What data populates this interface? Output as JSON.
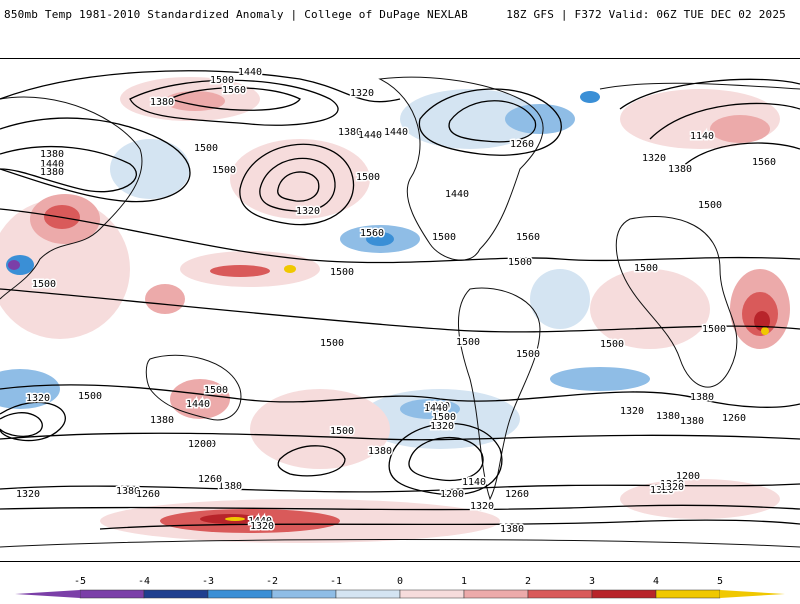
{
  "header": {
    "title_left": "850mb Temp 1981-2010 Standardized Anomaly | College of DuPage NEXLAB",
    "title_right": "18Z GFS | F372 Valid: 06Z TUE DEC 02 2025"
  },
  "colors": {
    "contour": "#000000",
    "coastline": "#111111",
    "anom_neg_5": "#7b3fa8",
    "anom_neg_4": "#1f3f8f",
    "anom_neg_3": "#3a8fd6",
    "anom_neg_2": "#8fbde6",
    "anom_neg_1": "#d4e4f2",
    "anom_pos_1": "#f6dcdc",
    "anom_pos_2": "#ecaaaa",
    "anom_pos_3": "#d95a5a",
    "anom_pos_4": "#b8242a",
    "anom_pos_5": "#f0c800"
  },
  "contour_labels": [
    {
      "text": "1440"
    },
    {
      "text": "1500"
    },
    {
      "text": "1560"
    },
    {
      "text": "1380"
    },
    {
      "text": "1320"
    },
    {
      "text": "1260"
    },
    {
      "text": "1140"
    },
    {
      "text": "1320"
    },
    {
      "text": "1380"
    },
    {
      "text": "1560"
    },
    {
      "text": "1440"
    },
    {
      "text": "1380"
    },
    {
      "text": "1440"
    },
    {
      "text": "1500"
    },
    {
      "text": "1380"
    },
    {
      "text": "1440"
    },
    {
      "text": "1380"
    },
    {
      "text": "1500"
    },
    {
      "text": "1320"
    },
    {
      "text": "1500"
    },
    {
      "text": "1560"
    },
    {
      "text": "1440"
    },
    {
      "text": "1500"
    },
    {
      "text": "1560"
    },
    {
      "text": "1500"
    },
    {
      "text": "1500"
    },
    {
      "text": "1500"
    },
    {
      "text": "1500"
    },
    {
      "text": "1500"
    },
    {
      "text": "1500"
    },
    {
      "text": "1500"
    },
    {
      "text": "1500"
    },
    {
      "text": "1500"
    },
    {
      "text": "1500"
    },
    {
      "text": "1500"
    },
    {
      "text": "1500"
    },
    {
      "text": "1440"
    },
    {
      "text": "1320"
    },
    {
      "text": "1500"
    },
    {
      "text": "1380"
    },
    {
      "text": "1200"
    },
    {
      "text": "1260"
    },
    {
      "text": "1380"
    },
    {
      "text": "1320"
    },
    {
      "text": "1320"
    },
    {
      "text": "1380"
    },
    {
      "text": "1500"
    },
    {
      "text": "1440"
    },
    {
      "text": "1320"
    },
    {
      "text": "1380"
    },
    {
      "text": "1260"
    },
    {
      "text": "1140"
    },
    {
      "text": "1200"
    },
    {
      "text": "1260"
    },
    {
      "text": "1200"
    },
    {
      "text": "1260"
    },
    {
      "text": "1320"
    },
    {
      "text": "1380"
    },
    {
      "text": "1380"
    },
    {
      "text": "1320"
    },
    {
      "text": "1440"
    },
    {
      "text": "1320"
    },
    {
      "text": "1380"
    },
    {
      "text": "1260"
    },
    {
      "text": "1200"
    },
    {
      "text": "1260"
    },
    {
      "text": "1320"
    },
    {
      "text": "1380"
    },
    {
      "text": "1320"
    }
  ],
  "colorbar": {
    "ticks": [
      "-5",
      "-4",
      "-3",
      "-2",
      "-1",
      "0",
      "1",
      "2",
      "3",
      "4",
      "5"
    ]
  }
}
